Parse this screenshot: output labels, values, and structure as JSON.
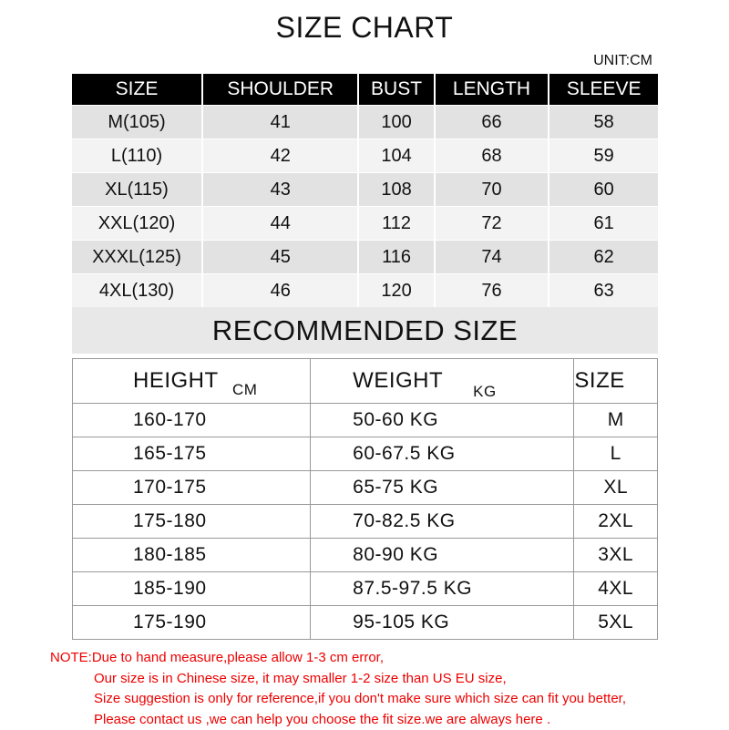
{
  "title": "SIZE CHART",
  "unit": "UNIT:CM",
  "size_table": {
    "headers": [
      "SIZE",
      "SHOULDER",
      "BUST",
      "LENGTH",
      "SLEEVE"
    ],
    "rows": [
      [
        "M(105)",
        "41",
        "100",
        "66",
        "58"
      ],
      [
        "L(110)",
        "42",
        "104",
        "68",
        "59"
      ],
      [
        "XL(115)",
        "43",
        "108",
        "70",
        "60"
      ],
      [
        "XXL(120)",
        "44",
        "112",
        "72",
        "61"
      ],
      [
        "XXXL(125)",
        "45",
        "116",
        "74",
        "62"
      ],
      [
        "4XL(130)",
        "46",
        "120",
        "76",
        "63"
      ]
    ]
  },
  "recommended": {
    "title": "RECOMMENDED SIZE",
    "headers": [
      {
        "label": "HEIGHT",
        "unit": "CM"
      },
      {
        "label": "WEIGHT",
        "unit": "KG"
      },
      {
        "label": "SIZE",
        "unit": ""
      }
    ],
    "rows": [
      [
        "160-170",
        "50-60 KG",
        "M"
      ],
      [
        "165-175",
        "60-67.5 KG",
        "L"
      ],
      [
        "170-175",
        "65-75 KG",
        "XL"
      ],
      [
        "175-180",
        "70-82.5 KG",
        "2XL"
      ],
      [
        "180-185",
        "80-90 KG",
        "3XL"
      ],
      [
        "185-190",
        "87.5-97.5 KG",
        "4XL"
      ],
      [
        "175-190",
        "95-105 KG",
        "5XL"
      ]
    ]
  },
  "notes": [
    "NOTE:Due to hand measure,please allow 1-3 cm error,",
    "Our size is in Chinese size, it may smaller 1-2 size than US EU size,",
    "Size suggestion is only for reference,if you don't make sure which size can fit you better,",
    "Please contact  us ,we can help you choose the fit size.we are  always here ."
  ],
  "colors": {
    "header_bg": "#000000",
    "note_text": "#e00000"
  }
}
